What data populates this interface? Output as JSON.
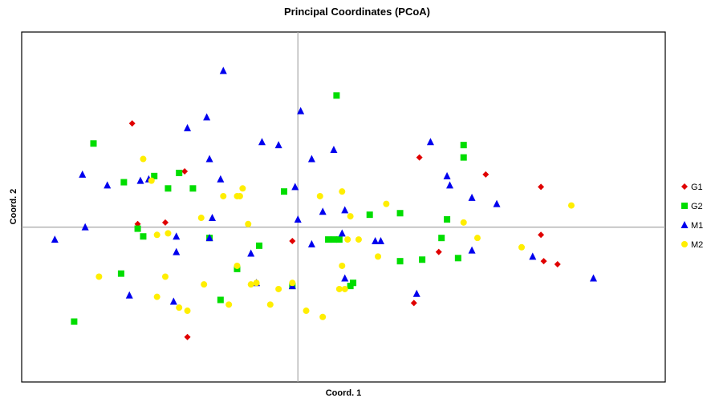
{
  "chart_data": {
    "type": "scatter",
    "title": "Principal Coordinates (PCoA)",
    "xlabel": "Coord. 1",
    "ylabel": "Coord. 2",
    "xlim": [
      -1.0,
      1.33
    ],
    "ylim": [
      -1.0,
      1.26
    ],
    "reference_lines": {
      "x": 0,
      "y": 0
    },
    "grid": false,
    "legend": "right",
    "series": [
      {
        "name": "G1",
        "marker": "diamond",
        "color": "#e00000",
        "points": [
          [
            -0.6,
            0.67
          ],
          [
            -0.41,
            0.36
          ],
          [
            -0.58,
            0.02
          ],
          [
            -0.48,
            0.03
          ],
          [
            -0.02,
            -0.09
          ],
          [
            -0.4,
            -0.71
          ],
          [
            0.44,
            0.45
          ],
          [
            0.51,
            -0.16
          ],
          [
            0.68,
            0.34
          ],
          [
            0.88,
            0.26
          ],
          [
            0.88,
            -0.05
          ],
          [
            0.89,
            -0.22
          ],
          [
            0.94,
            -0.24
          ],
          [
            0.42,
            -0.49
          ]
        ]
      },
      {
        "name": "G2",
        "marker": "square",
        "color": "#00dd00",
        "points": [
          [
            -0.74,
            0.54
          ],
          [
            -0.63,
            0.29
          ],
          [
            -0.52,
            0.33
          ],
          [
            -0.47,
            0.25
          ],
          [
            -0.43,
            0.35
          ],
          [
            -0.38,
            0.25
          ],
          [
            -0.58,
            -0.01
          ],
          [
            -0.56,
            -0.06
          ],
          [
            -0.32,
            -0.07
          ],
          [
            -0.64,
            -0.3
          ],
          [
            -0.81,
            -0.61
          ],
          [
            -0.28,
            -0.47
          ],
          [
            -0.22,
            -0.27
          ],
          [
            -0.14,
            -0.12
          ],
          [
            -0.02,
            -0.38
          ],
          [
            -0.05,
            0.23
          ],
          [
            0.14,
            0.85
          ],
          [
            0.11,
            -0.08
          ],
          [
            0.13,
            -0.08
          ],
          [
            0.15,
            -0.08
          ],
          [
            0.19,
            -0.38
          ],
          [
            0.2,
            -0.36
          ],
          [
            0.26,
            0.08
          ],
          [
            0.37,
            0.09
          ],
          [
            0.37,
            -0.22
          ],
          [
            0.45,
            -0.21
          ],
          [
            0.52,
            -0.07
          ],
          [
            0.54,
            0.05
          ],
          [
            0.58,
            -0.2
          ],
          [
            0.6,
            0.53
          ],
          [
            0.6,
            0.45
          ]
        ]
      },
      {
        "name": "M1",
        "marker": "triangle",
        "color": "#0000ee",
        "points": [
          [
            -0.88,
            -0.08
          ],
          [
            -0.77,
            0.0
          ],
          [
            -0.78,
            0.34
          ],
          [
            -0.69,
            0.27
          ],
          [
            -0.57,
            0.3
          ],
          [
            -0.54,
            0.31
          ],
          [
            -0.44,
            -0.06
          ],
          [
            -0.44,
            -0.16
          ],
          [
            -0.61,
            -0.44
          ],
          [
            -0.45,
            -0.48
          ],
          [
            -0.4,
            0.64
          ],
          [
            -0.33,
            0.71
          ],
          [
            -0.32,
            0.44
          ],
          [
            -0.31,
            0.06
          ],
          [
            -0.32,
            -0.07
          ],
          [
            -0.28,
            0.31
          ],
          [
            -0.27,
            1.01
          ],
          [
            -0.17,
            -0.17
          ],
          [
            -0.15,
            -0.36
          ],
          [
            -0.13,
            0.55
          ],
          [
            -0.07,
            0.53
          ],
          [
            -0.01,
            0.26
          ],
          [
            0.0,
            0.05
          ],
          [
            0.01,
            0.75
          ],
          [
            0.05,
            0.44
          ],
          [
            0.05,
            -0.11
          ],
          [
            0.09,
            0.1
          ],
          [
            0.13,
            0.5
          ],
          [
            0.16,
            -0.04
          ],
          [
            0.17,
            -0.33
          ],
          [
            0.17,
            0.11
          ],
          [
            -0.02,
            -0.38
          ],
          [
            0.28,
            -0.09
          ],
          [
            0.3,
            -0.09
          ],
          [
            0.43,
            -0.43
          ],
          [
            0.48,
            0.55
          ],
          [
            0.54,
            0.33
          ],
          [
            0.55,
            0.27
          ],
          [
            0.63,
            0.19
          ],
          [
            0.72,
            0.15
          ],
          [
            0.63,
            -0.15
          ],
          [
            0.85,
            -0.19
          ],
          [
            1.07,
            -0.33
          ]
        ]
      },
      {
        "name": "M2",
        "marker": "circle",
        "color": "#ffee00",
        "points": [
          [
            -0.56,
            0.44
          ],
          [
            -0.53,
            0.3
          ],
          [
            -0.51,
            -0.05
          ],
          [
            -0.47,
            -0.04
          ],
          [
            -0.72,
            -0.32
          ],
          [
            -0.48,
            -0.32
          ],
          [
            -0.51,
            -0.45
          ],
          [
            -0.43,
            -0.52
          ],
          [
            -0.4,
            -0.54
          ],
          [
            -0.34,
            -0.37
          ],
          [
            -0.35,
            0.06
          ],
          [
            -0.27,
            0.2
          ],
          [
            -0.22,
            0.2
          ],
          [
            -0.2,
            0.25
          ],
          [
            -0.21,
            0.2
          ],
          [
            -0.22,
            -0.25
          ],
          [
            -0.25,
            -0.5
          ],
          [
            -0.17,
            -0.37
          ],
          [
            -0.15,
            -0.36
          ],
          [
            -0.18,
            0.02
          ],
          [
            -0.1,
            -0.5
          ],
          [
            -0.07,
            -0.4
          ],
          [
            -0.02,
            -0.36
          ],
          [
            0.03,
            -0.54
          ],
          [
            0.09,
            -0.58
          ],
          [
            0.08,
            0.2
          ],
          [
            0.16,
            0.23
          ],
          [
            0.19,
            0.07
          ],
          [
            0.16,
            -0.25
          ],
          [
            0.18,
            -0.08
          ],
          [
            0.22,
            -0.08
          ],
          [
            0.17,
            -0.4
          ],
          [
            0.15,
            -0.4
          ],
          [
            0.32,
            0.15
          ],
          [
            0.29,
            -0.19
          ],
          [
            0.6,
            0.03
          ],
          [
            0.65,
            -0.07
          ],
          [
            0.81,
            -0.13
          ],
          [
            0.99,
            0.14
          ]
        ]
      }
    ]
  }
}
